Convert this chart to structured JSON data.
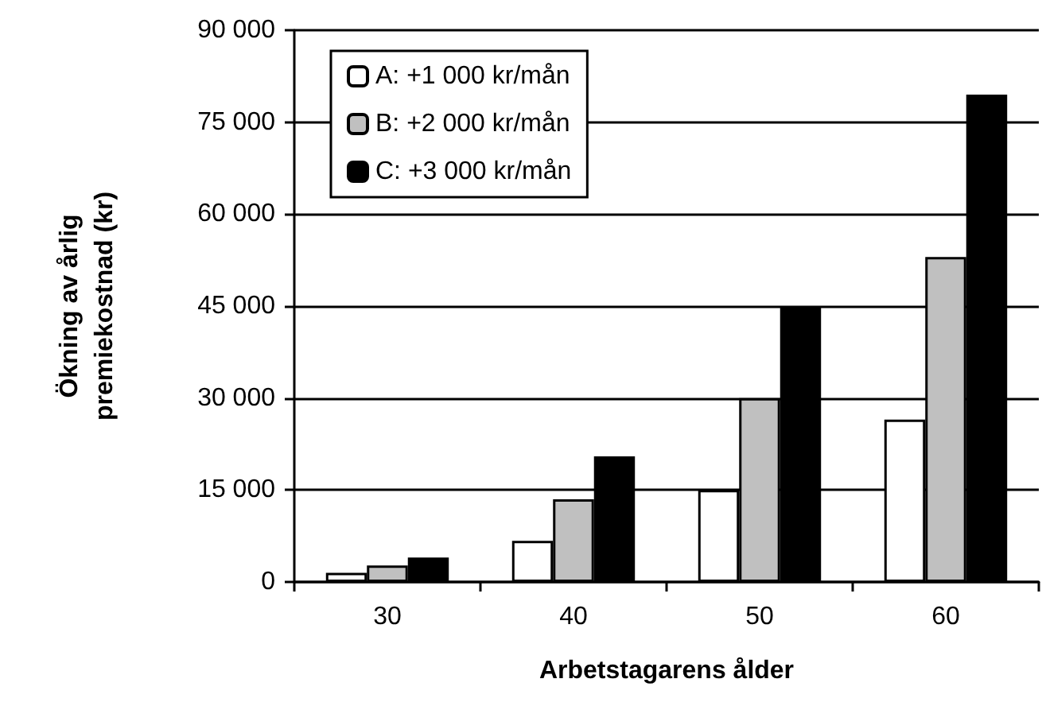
{
  "chart_data": {
    "type": "bar",
    "xlabel": "Arbetstagarens ålder",
    "ylabel": "Ökning av årlig\npremiekostnad (kr)",
    "categories": [
      "30",
      "40",
      "50",
      "60"
    ],
    "series": [
      {
        "name": "A: +1 000 kr/mån",
        "color": "#ffffff",
        "values": [
          1500,
          6700,
          15000,
          26500
        ]
      },
      {
        "name": "B: +2 000 kr/mån",
        "color": "#c0c0c0",
        "values": [
          2700,
          13500,
          30000,
          53000
        ]
      },
      {
        "name": "C: +3 000 kr/mån",
        "color": "#000000",
        "values": [
          4000,
          20500,
          45000,
          79500
        ]
      }
    ],
    "ylim": [
      0,
      90000
    ],
    "yticks": [
      {
        "value": 0,
        "label": "0"
      },
      {
        "value": 15000,
        "label": "15 000"
      },
      {
        "value": 30000,
        "label": "30 000"
      },
      {
        "value": 45000,
        "label": "45 000"
      },
      {
        "value": 60000,
        "label": "60 000"
      },
      {
        "value": 75000,
        "label": "75 000"
      },
      {
        "value": 90000,
        "label": "90 000"
      }
    ],
    "grid": "y",
    "legend": "top left"
  }
}
